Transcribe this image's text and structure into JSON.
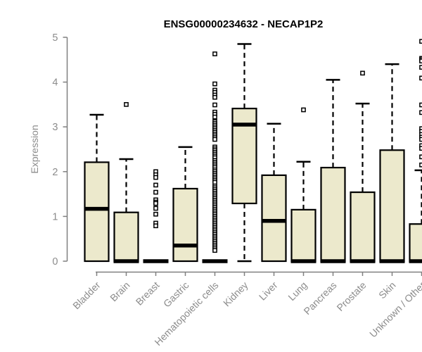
{
  "chart_data": {
    "type": "boxplot",
    "title": "ENSG00000234632 - NECAP1P2",
    "ylabel": "Expression",
    "xlabel": "",
    "ylim": [
      0,
      5
    ],
    "y_ticks": [
      0,
      1,
      2,
      3,
      4,
      5
    ],
    "grid": false,
    "legend": false,
    "axis_color": "#808080",
    "label_color": "#8c8c8c",
    "box_fill_color": "#ece9cc",
    "box_border_color": "#000000",
    "whisker_style": "dashed",
    "outlier_marker": "open-square",
    "categories": [
      "Bladder",
      "Brain",
      "Breast",
      "Gastric",
      "Hematopoietic cells",
      "Kidney",
      "Liver",
      "Lung",
      "Pancreas",
      "Prostate",
      "Skin",
      "Unknown / Other"
    ],
    "series": [
      {
        "label": "Bladder",
        "whisker_low": 0,
        "q1": 0,
        "median": 1.17,
        "q3": 2.21,
        "whisker_high": 3.27,
        "outliers": []
      },
      {
        "label": "Brain",
        "whisker_low": 0,
        "q1": 0,
        "median": 0,
        "q3": 1.09,
        "whisker_high": 2.28,
        "outliers": [
          3.5
        ]
      },
      {
        "label": "Breast",
        "whisker_low": 0,
        "q1": 0,
        "median": 0,
        "q3": 0,
        "whisker_high": 0,
        "outliers": [
          2.0,
          1.93,
          1.87,
          1.7,
          1.54,
          1.37,
          1.32,
          1.29,
          1.18,
          1.05,
          0.85,
          0.79
        ]
      },
      {
        "label": "Gastric",
        "whisker_low": 0,
        "q1": 0,
        "median": 0.35,
        "q3": 1.62,
        "whisker_high": 2.55,
        "outliers": []
      },
      {
        "label": "Hematopoietic cells",
        "whisker_low": 0,
        "q1": 0,
        "median": 0,
        "q3": 0,
        "whisker_high": 0,
        "outliers": [
          4.63,
          3.96,
          3.82,
          3.77,
          3.71,
          3.66,
          3.49,
          3.33,
          3.28,
          3.22,
          3.12,
          3.08,
          3.04,
          3.0,
          2.96,
          2.92,
          2.88,
          2.84,
          2.8,
          2.76,
          2.72,
          2.55,
          2.51,
          2.47,
          2.43,
          2.39,
          2.35,
          2.31,
          2.25,
          2.21,
          2.17,
          2.13,
          2.09,
          2.04,
          2.0,
          1.96,
          1.92,
          1.88,
          1.84,
          1.8,
          1.76,
          1.68,
          1.64,
          1.6,
          1.56,
          1.52,
          1.48,
          1.44,
          1.4,
          1.36,
          1.32,
          1.28,
          1.24,
          1.2,
          1.16,
          1.12,
          1.08,
          1.04,
          1.0,
          0.96,
          0.92,
          0.88,
          0.84,
          0.8,
          0.76,
          0.72,
          0.68,
          0.64,
          0.6,
          0.56,
          0.52,
          0.48,
          0.44,
          0.4,
          0.36,
          0.32,
          0.28,
          0.24
        ]
      },
      {
        "label": "Kidney",
        "whisker_low": 0,
        "q1": 1.29,
        "median": 3.05,
        "q3": 3.41,
        "whisker_high": 4.85,
        "outliers": []
      },
      {
        "label": "Liver",
        "whisker_low": 0,
        "q1": 0,
        "median": 0.9,
        "q3": 1.92,
        "whisker_high": 3.07,
        "outliers": []
      },
      {
        "label": "Lung",
        "whisker_low": 0,
        "q1": 0,
        "median": 0,
        "q3": 1.15,
        "whisker_high": 2.22,
        "outliers": [
          3.38
        ]
      },
      {
        "label": "Pancreas",
        "whisker_low": 0,
        "q1": 0,
        "median": 0,
        "q3": 2.09,
        "whisker_high": 4.05,
        "outliers": []
      },
      {
        "label": "Prostate",
        "whisker_low": 0,
        "q1": 0,
        "median": 0,
        "q3": 1.54,
        "whisker_high": 3.52,
        "outliers": [
          4.2
        ]
      },
      {
        "label": "Skin",
        "whisker_low": 0,
        "q1": 0,
        "median": 0,
        "q3": 2.48,
        "whisker_high": 4.4,
        "outliers": []
      },
      {
        "label": "Unknown / Other",
        "whisker_low": 0,
        "q1": 0,
        "median": 0,
        "q3": 0.83,
        "whisker_high": 2.03,
        "outliers": [
          4.91,
          4.53,
          4.5,
          4.47,
          4.33,
          4.09,
          3.49,
          3.32,
          2.96,
          2.9,
          2.83,
          2.77,
          2.72,
          2.58,
          2.52,
          2.33,
          2.15
        ]
      }
    ]
  }
}
